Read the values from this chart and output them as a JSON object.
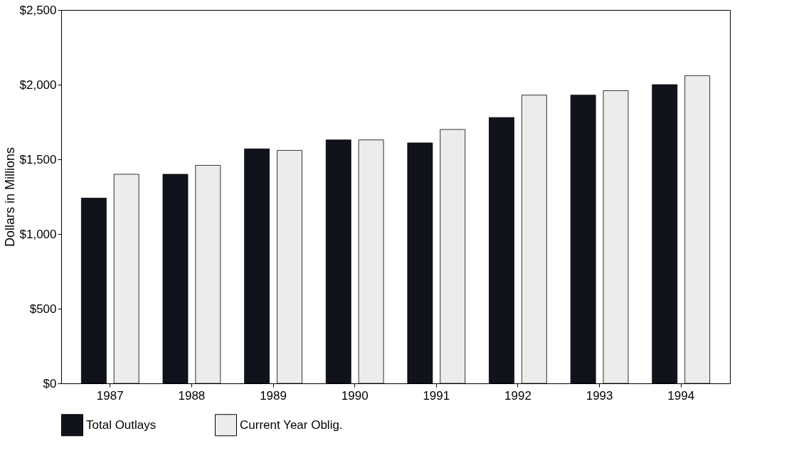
{
  "chart_data": {
    "type": "bar",
    "ylabel": "Dollars in Millions",
    "categories": [
      "1987",
      "1988",
      "1989",
      "1990",
      "1991",
      "1992",
      "1993",
      "1994"
    ],
    "series": [
      {
        "name": "Total Outlays",
        "color": "#11131c",
        "values": [
          1240,
          1400,
          1570,
          1630,
          1610,
          1780,
          1930,
          2000
        ]
      },
      {
        "name": "Current Year Oblig.",
        "color": "#ececea",
        "values": [
          1400,
          1460,
          1560,
          1630,
          1700,
          1930,
          1960,
          2060
        ]
      }
    ],
    "ylim": [
      0,
      2500
    ],
    "yticks": [
      {
        "value": 0,
        "label": "$0"
      },
      {
        "value": 500,
        "label": "$500"
      },
      {
        "value": 1000,
        "label": "$1,000"
      },
      {
        "value": 1500,
        "label": "$1,500"
      },
      {
        "value": 2000,
        "label": "$2,000"
      },
      {
        "value": 2500,
        "label": "$2,500"
      }
    ],
    "grid": false,
    "legend": "bottom"
  }
}
